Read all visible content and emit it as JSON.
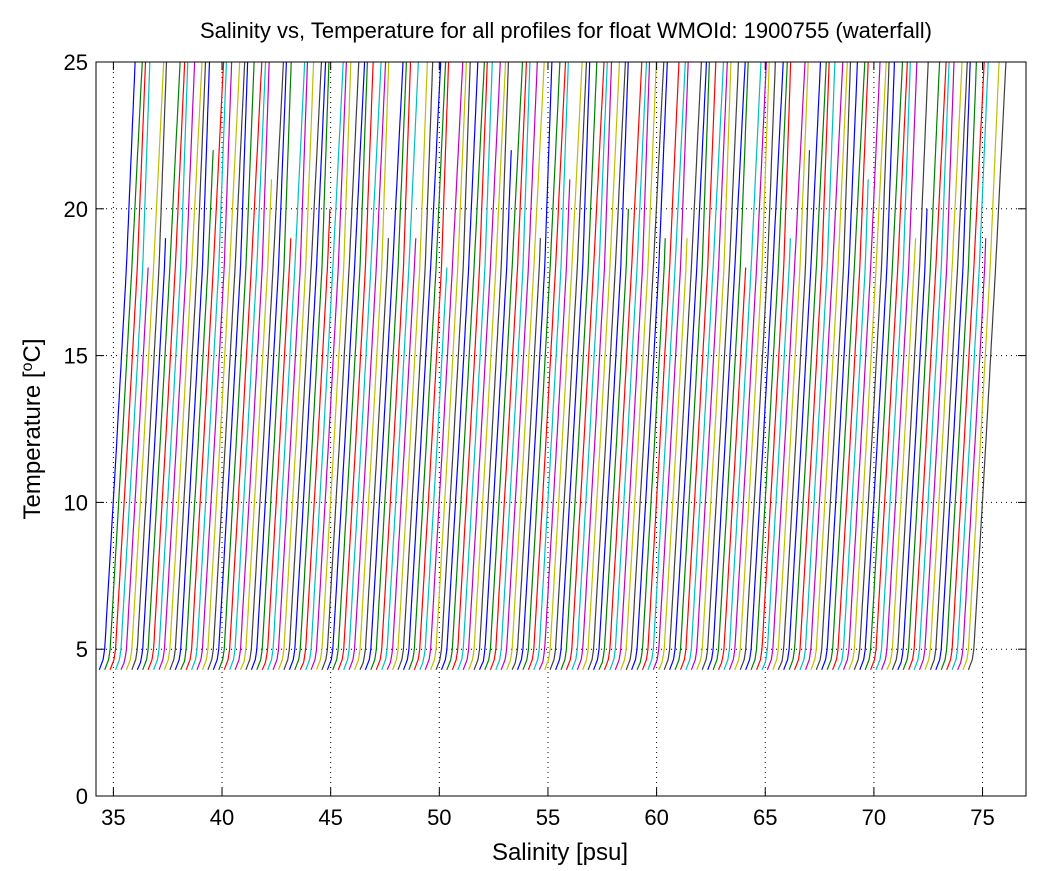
{
  "chart_data": {
    "type": "line",
    "title": "Salinity vs, Temperature for all profiles for float WMOId: 1900755 (waterfall)",
    "xlabel": "Salinity [psu]",
    "ylabel_main": "Temperature [",
    "ylabel_sup": "o",
    "ylabel_end": "C]",
    "xlim": [
      34.2,
      77
    ],
    "ylim": [
      0,
      25
    ],
    "xticks": [
      35,
      40,
      45,
      50,
      55,
      60,
      65,
      70,
      75
    ],
    "yticks": [
      0,
      5,
      10,
      15,
      20,
      25
    ],
    "grid": true,
    "waterfall": {
      "profile_count": 161,
      "first_offset_psu": 35.0,
      "offset_step_psu": 0.25,
      "profile_base_salinity_psu": 34.4,
      "profile_top_salinity_psu": 36.0,
      "min_temperature_C": 4.3,
      "max_temperature_C": 25.0
    },
    "series_colors": [
      "#0000ff",
      "#007f00",
      "#ff0000",
      "#00bfbf",
      "#bf00bf",
      "#bfbf00",
      "#3f3f3f"
    ]
  }
}
